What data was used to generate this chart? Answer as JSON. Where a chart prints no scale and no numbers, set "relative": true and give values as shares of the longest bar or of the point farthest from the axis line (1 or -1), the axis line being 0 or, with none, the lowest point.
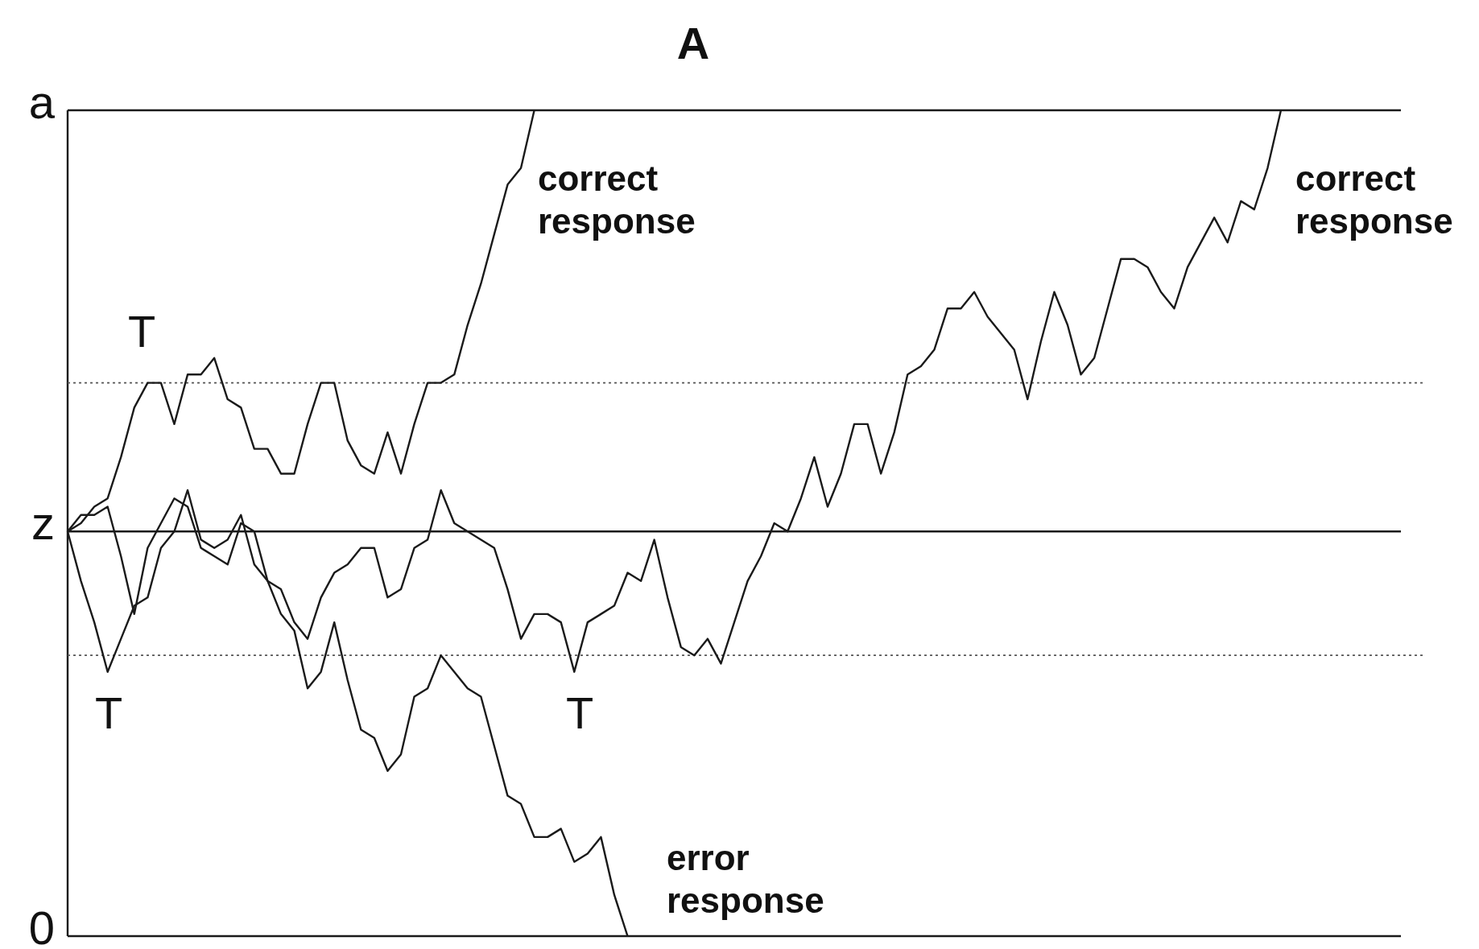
{
  "chart_data": {
    "type": "line",
    "title": "A",
    "relative": true,
    "legend": false,
    "grid": false,
    "categories": [
      null,
      null,
      null,
      null,
      null,
      null,
      null,
      null,
      null,
      null,
      null,
      null,
      null,
      null,
      null,
      null,
      null,
      null,
      null,
      null,
      null,
      null,
      null,
      null,
      null,
      null,
      null,
      null,
      null,
      null,
      null,
      null,
      null,
      null,
      null,
      null,
      null,
      null,
      null,
      null,
      null,
      null,
      null,
      null,
      null,
      null,
      null,
      null,
      null,
      null,
      null,
      null,
      null,
      null,
      null,
      null,
      null,
      null,
      null,
      null,
      null,
      null,
      null,
      null,
      null,
      null,
      null,
      null,
      null,
      null,
      null,
      null,
      null,
      null,
      null,
      null,
      null,
      null,
      null,
      null,
      null,
      null,
      null,
      null,
      null,
      null,
      null,
      null,
      null,
      null,
      null,
      null,
      null,
      null,
      null,
      null,
      null,
      null,
      null,
      null,
      null
    ],
    "series": [
      {
        "color": "#1a1a1a",
        "values": [
          0.49,
          0.5,
          0.52,
          0.53,
          0.58,
          0.64,
          0.67,
          0.67,
          0.62,
          0.68,
          0.68,
          0.7,
          0.65,
          0.64,
          0.59,
          0.59,
          0.56,
          0.56,
          0.62,
          0.67,
          0.67,
          0.6,
          0.57,
          0.56,
          0.61,
          0.56,
          0.62,
          0.67,
          0.67,
          0.68,
          0.74,
          0.79,
          0.85,
          0.91,
          0.93,
          1.0,
          null,
          null,
          null,
          null,
          null,
          null,
          null,
          null,
          null,
          null,
          null,
          null,
          null,
          null,
          null,
          null,
          null,
          null,
          null,
          null,
          null,
          null,
          null,
          null,
          null,
          null,
          null,
          null,
          null,
          null,
          null,
          null,
          null,
          null,
          null,
          null,
          null,
          null,
          null,
          null,
          null,
          null,
          null,
          null,
          null,
          null,
          null,
          null,
          null,
          null,
          null,
          null,
          null,
          null,
          null,
          null,
          null,
          null,
          null,
          null,
          null,
          null,
          null,
          null,
          null
        ]
      },
      {
        "color": "#1a1a1a",
        "values": [
          0.49,
          0.43,
          0.38,
          0.32,
          0.36,
          0.4,
          0.41,
          0.47,
          0.49,
          0.54,
          0.48,
          0.47,
          0.48,
          0.51,
          0.45,
          0.43,
          0.39,
          0.37,
          0.3,
          0.32,
          0.38,
          0.31,
          0.25,
          0.24,
          0.2,
          0.22,
          0.29,
          0.3,
          0.34,
          0.32,
          0.3,
          0.29,
          0.23,
          0.17,
          0.16,
          0.12,
          0.12,
          0.13,
          0.09,
          0.1,
          0.12,
          0.05,
          0.0,
          null,
          null,
          null,
          null,
          null,
          null,
          null,
          null,
          null,
          null,
          null,
          null,
          null,
          null,
          null,
          null,
          null,
          null,
          null,
          null,
          null,
          null,
          null,
          null,
          null,
          null,
          null,
          null,
          null,
          null,
          null,
          null,
          null,
          null,
          null,
          null,
          null,
          null,
          null,
          null,
          null,
          null,
          null,
          null,
          null,
          null,
          null,
          null,
          null,
          null,
          null,
          null,
          null,
          null,
          null,
          null,
          null,
          null
        ]
      },
      {
        "color": "#1a1a1a",
        "values": [
          0.49,
          0.51,
          0.51,
          0.52,
          0.46,
          0.39,
          0.47,
          0.5,
          0.53,
          0.52,
          0.47,
          0.46,
          0.45,
          0.5,
          0.49,
          0.43,
          0.42,
          0.38,
          0.36,
          0.41,
          0.44,
          0.45,
          0.47,
          0.47,
          0.41,
          0.42,
          0.47,
          0.48,
          0.54,
          0.5,
          0.49,
          0.48,
          0.47,
          0.42,
          0.36,
          0.39,
          0.39,
          0.38,
          0.32,
          0.38,
          0.39,
          0.4,
          0.44,
          0.43,
          0.48,
          0.41,
          0.35,
          0.34,
          0.36,
          0.33,
          0.38,
          0.43,
          0.46,
          0.5,
          0.49,
          0.53,
          0.58,
          0.52,
          0.56,
          0.62,
          0.62,
          0.56,
          0.61,
          0.68,
          0.69,
          0.71,
          0.76,
          0.76,
          0.78,
          0.75,
          0.73,
          0.71,
          0.65,
          0.72,
          0.78,
          0.74,
          0.68,
          0.7,
          0.76,
          0.82,
          0.82,
          0.81,
          0.78,
          0.76,
          0.81,
          0.84,
          0.87,
          0.84,
          0.89,
          0.88,
          0.93,
          1.0,
          null,
          null,
          null,
          null,
          null,
          null,
          null,
          null,
          null
        ]
      }
    ],
    "ref_lines": [
      {
        "axis": "y",
        "value": 1,
        "label": "a"
      },
      {
        "axis": "y",
        "value": 0.67,
        "line_style": "dotted"
      },
      {
        "axis": "y",
        "value": 0.49,
        "label": "z"
      },
      {
        "axis": "y",
        "value": 0.34,
        "line_style": "dotted"
      },
      {
        "axis": "y",
        "value": 0,
        "label": "0"
      }
    ],
    "annotations": [
      "correct response",
      "T",
      "correct response",
      "T",
      "T",
      "error response"
    ]
  }
}
